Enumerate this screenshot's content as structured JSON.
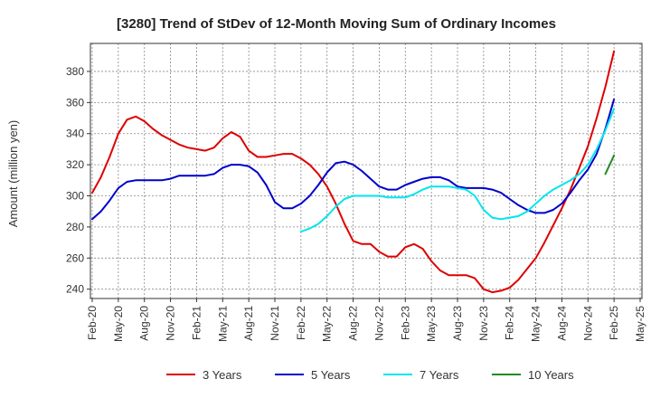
{
  "chart_data": {
    "type": "line",
    "title": "[3280]  Trend of StDev of 12-Month Moving Sum of Ordinary Incomes",
    "xlabel": "",
    "ylabel": "Amount (million yen)",
    "ylim": [
      234,
      398
    ],
    "yticks": [
      240,
      260,
      280,
      300,
      320,
      340,
      360,
      380
    ],
    "x_ticks": [
      "Feb-20",
      "May-20",
      "Aug-20",
      "Nov-20",
      "Feb-21",
      "May-21",
      "Aug-21",
      "Nov-21",
      "Feb-22",
      "May-22",
      "Aug-22",
      "Nov-22",
      "Feb-23",
      "May-23",
      "Aug-23",
      "Nov-23",
      "Feb-24",
      "May-24",
      "Aug-24",
      "Nov-24",
      "Feb-25",
      "May-25"
    ],
    "x_start": "Feb-20",
    "x_step_months": 1,
    "grid": true,
    "legend_position": "bottom",
    "series": [
      {
        "name": "3 Years",
        "color": "#dd0000",
        "start_index": 0,
        "values": [
          302,
          312,
          325,
          340,
          349,
          351,
          348,
          343,
          339,
          336,
          333,
          331,
          330,
          329,
          331,
          337,
          341,
          338,
          329,
          325,
          325,
          326,
          327,
          327,
          324,
          320,
          314,
          306,
          295,
          282,
          271,
          269,
          269,
          264,
          261,
          261,
          267,
          269,
          266,
          258,
          252,
          249,
          249,
          249,
          247,
          240,
          238,
          239,
          241,
          246,
          253,
          260,
          270,
          281,
          292,
          304,
          318,
          332,
          350,
          370,
          393
        ]
      },
      {
        "name": "5 Years",
        "color": "#0000cc",
        "start_index": 0,
        "values": [
          285,
          290,
          297,
          305,
          309,
          310,
          310,
          310,
          310,
          311,
          313,
          313,
          313,
          313,
          314,
          318,
          320,
          320,
          319,
          315,
          307,
          296,
          292,
          292,
          295,
          300,
          307,
          315,
          321,
          322,
          320,
          316,
          311,
          306,
          304,
          304,
          307,
          309,
          311,
          312,
          312,
          310,
          306,
          305,
          305,
          305,
          304,
          302,
          298,
          294,
          291,
          289,
          289,
          291,
          295,
          302,
          310,
          317,
          327,
          343,
          362
        ]
      },
      {
        "name": "7 Years",
        "color": "#00e5ee",
        "start_index": 24,
        "values": [
          277,
          279,
          282,
          287,
          293,
          298,
          300,
          300,
          300,
          300,
          299,
          299,
          299,
          301,
          304,
          306,
          306,
          306,
          305,
          304,
          300,
          291,
          286,
          285,
          286,
          287,
          290,
          295,
          300,
          304,
          307,
          310,
          314,
          320,
          330,
          342,
          356
        ]
      },
      {
        "name": "10 Years",
        "color": "#228b22",
        "start_index": 59,
        "values": [
          314,
          326
        ]
      }
    ]
  }
}
